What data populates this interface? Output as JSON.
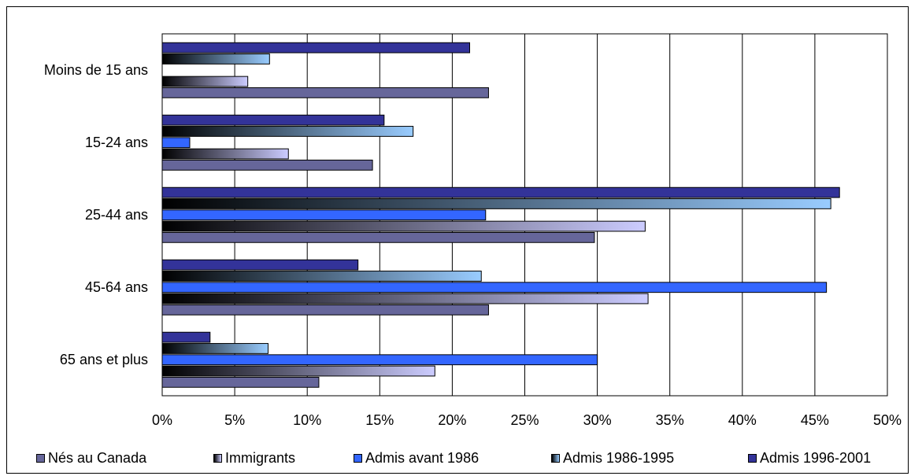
{
  "chart_data": {
    "type": "bar",
    "orientation": "horizontal",
    "categories": [
      "Moins de 15 ans",
      "15-24 ans",
      "25-44 ans",
      "45-64 ans",
      "65 ans et plus"
    ],
    "series": [
      {
        "name": "Nés au Canada",
        "values": [
          22.5,
          14.5,
          29.8,
          22.5,
          10.8
        ],
        "color": "#66669A"
      },
      {
        "name": "Immigrants",
        "values": [
          5.9,
          8.7,
          33.3,
          33.5,
          18.8
        ],
        "color": "#CCCCFF"
      },
      {
        "name": "Admis avant 1986",
        "values": [
          null,
          1.9,
          22.3,
          45.8,
          30.0
        ],
        "color": "#3366FF"
      },
      {
        "name": "Admis 1986-1995",
        "values": [
          7.4,
          17.3,
          46.1,
          22.0,
          7.3
        ],
        "color": "#99CCFF"
      },
      {
        "name": "Admis 1996-2001",
        "values": [
          21.2,
          15.3,
          46.7,
          13.5,
          3.3
        ],
        "color": "#333399"
      }
    ],
    "xticks": [
      "0%",
      "5%",
      "10%",
      "15%",
      "20%",
      "25%",
      "30%",
      "35%",
      "40%",
      "45%",
      "50%"
    ],
    "xlim": [
      0,
      50
    ],
    "grid": "vertical",
    "legend_position": "bottom"
  }
}
